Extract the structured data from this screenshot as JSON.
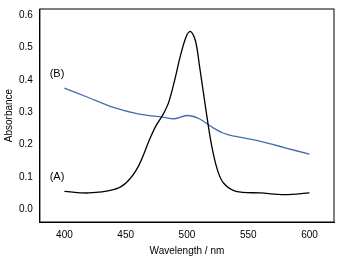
{
  "chart_data": {
    "type": "line",
    "x_label": "Wavelength / nm",
    "y_label": "Absorbance",
    "xlim": [
      380,
      620
    ],
    "xticks": [
      400,
      450,
      500,
      550,
      600
    ],
    "ylim": [
      -0.04,
      0.62
    ],
    "yticks": [
      {
        "value": 0,
        "label": "0.0"
      },
      {
        "value": 0.1,
        "label": "0.1"
      },
      {
        "value": 0.2,
        "label": "0.2"
      },
      {
        "value": 0.3,
        "label": "0.3"
      },
      {
        "value": 0.4,
        "label": "0.4"
      },
      {
        "value": 0.5,
        "label": "0.5"
      },
      {
        "value": 0.6,
        "label": "0.6"
      }
    ],
    "grid": false,
    "series": [
      {
        "name": "(A)",
        "color": "#000000",
        "x": [
          400,
          420,
          440,
          450,
          460,
          470,
          475,
          480,
          485,
          490,
          495,
          500,
          503,
          507,
          510,
          515,
          520,
          525,
          530,
          540,
          560,
          580,
          600
        ],
        "values": [
          0.055,
          0.05,
          0.06,
          0.08,
          0.13,
          0.22,
          0.26,
          0.29,
          0.33,
          0.4,
          0.48,
          0.54,
          0.55,
          0.52,
          0.45,
          0.32,
          0.2,
          0.12,
          0.08,
          0.055,
          0.05,
          0.045,
          0.05
        ]
      },
      {
        "name": "(B)",
        "color": "#3f6fb0",
        "x": [
          400,
          420,
          440,
          460,
          480,
          490,
          500,
          510,
          520,
          530,
          540,
          560,
          580,
          600
        ],
        "values": [
          0.375,
          0.345,
          0.315,
          0.295,
          0.285,
          0.28,
          0.29,
          0.28,
          0.255,
          0.235,
          0.225,
          0.21,
          0.19,
          0.17
        ]
      }
    ],
    "annotations": [
      {
        "text": "(A)",
        "x": 388,
        "y": 0.1
      },
      {
        "text": "(B)",
        "x": 388,
        "y": 0.42
      }
    ]
  }
}
